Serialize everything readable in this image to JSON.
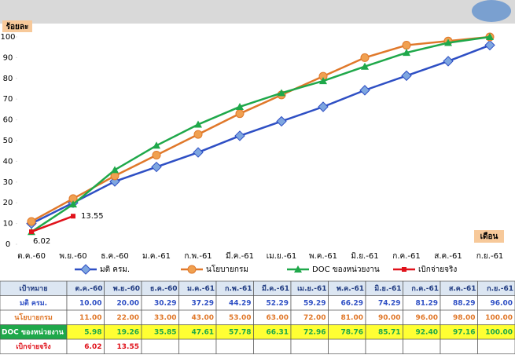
{
  "chart_data": {
    "type": "line",
    "y_label": "ร้อยละ",
    "x_label": "เดือน",
    "table_header": "เป้าหมาย",
    "categories": [
      "ต.ค.-60",
      "พ.ย.-60",
      "ธ.ค.-60",
      "ม.ค.-61",
      "ก.พ.-61",
      "มี.ค.-61",
      "เม.ย.-61",
      "พ.ค.-61",
      "มิ.ย.-61",
      "ก.ค.-61",
      "ส.ค.-61",
      "ก.ย.-61"
    ],
    "ylim": [
      0,
      100
    ],
    "yticks": [
      0,
      10,
      20,
      30,
      40,
      50,
      60,
      70,
      80,
      90,
      100
    ],
    "series": [
      {
        "name": "มติ ครม.",
        "color": "#2e4fc4",
        "marker": "diamond",
        "values": [
          10,
          20,
          30.29,
          37.29,
          44.29,
          52.29,
          59.29,
          66.29,
          74.29,
          81.29,
          88.29,
          96
        ],
        "value_labels": [
          "10.00",
          "20.00",
          "30.29",
          "37.29",
          "44.29",
          "52.29",
          "59.29",
          "66.29",
          "74.29",
          "81.29",
          "88.29",
          "96.00"
        ]
      },
      {
        "name": "นโยบายกรม",
        "color": "#e0782a",
        "marker": "circle",
        "values": [
          11,
          22,
          33,
          43,
          53,
          63,
          72,
          81,
          90,
          96,
          98,
          100
        ],
        "value_labels": [
          "11.00",
          "22.00",
          "33.00",
          "43.00",
          "53.00",
          "63.00",
          "72.00",
          "81.00",
          "90.00",
          "96.00",
          "98.00",
          "100.00"
        ]
      },
      {
        "name": "DOC ของหน่วยงาน",
        "color": "#1fa84a",
        "marker": "triangle",
        "values": [
          5.98,
          19.26,
          35.85,
          47.61,
          57.78,
          66.31,
          72.96,
          78.76,
          85.71,
          92.4,
          97.16,
          100
        ],
        "value_labels": [
          "5.98",
          "19.26",
          "35.85",
          "47.61",
          "57.78",
          "66.31",
          "72.96",
          "78.76",
          "85.71",
          "92.40",
          "97.16",
          "100.00"
        ]
      },
      {
        "name": "เบิกจ่ายจริง",
        "color": "#e0121b",
        "marker": "square",
        "values": [
          6.02,
          13.55,
          null,
          null,
          null,
          null,
          null,
          null,
          null,
          null,
          null,
          null
        ]
      }
    ]
  }
}
